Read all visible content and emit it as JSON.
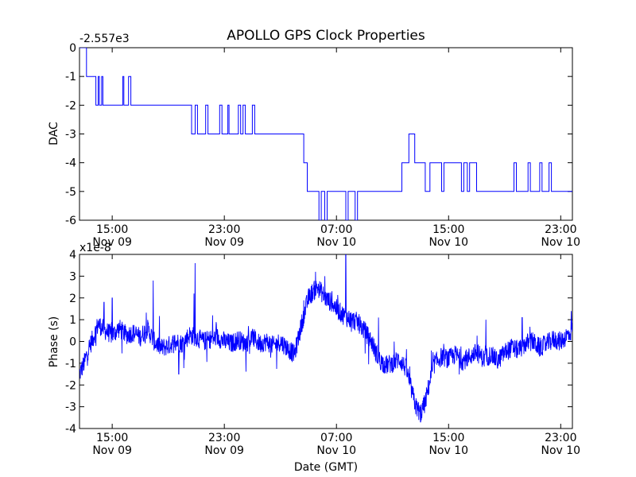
{
  "title": "APOLLO GPS Clock Properties",
  "xlabel": "Date (GMT)",
  "x_ticks": [
    {
      "t": "2010-11-09T15:00",
      "time": "15:00",
      "date": "Nov 09"
    },
    {
      "t": "2010-11-09T23:00",
      "time": "23:00",
      "date": "Nov 09"
    },
    {
      "t": "2010-11-10T07:00",
      "time": "07:00",
      "date": "Nov 10"
    },
    {
      "t": "2010-11-10T15:00",
      "time": "15:00",
      "date": "Nov 10"
    },
    {
      "t": "2010-11-10T23:00",
      "time": "23:00",
      "date": "Nov 10"
    }
  ],
  "line_color": "#0000ff",
  "chart_data": [
    {
      "type": "line",
      "ylabel": "DAC",
      "offset_label": "-2.557e3",
      "xlim": [
        "2010-11-09T12:40",
        "2010-11-10T23:50"
      ],
      "ylim": [
        -6,
        0
      ],
      "y_ticks": [
        "0",
        "-1",
        "-2",
        "-3",
        "-4",
        "-5",
        "-6"
      ],
      "grid": false,
      "series": [
        {
          "points": [
            [
              "2010-11-09T12:40",
              0
            ],
            [
              "2010-11-09T13:10",
              0
            ],
            [
              "2010-11-09T13:10",
              -1
            ],
            [
              "2010-11-09T13:50",
              -1
            ],
            [
              "2010-11-09T13:50",
              -2
            ],
            [
              "2010-11-09T14:00",
              -2
            ],
            [
              "2010-11-09T14:00",
              -1
            ],
            [
              "2010-11-09T14:05",
              -1
            ],
            [
              "2010-11-09T14:05",
              -2
            ],
            [
              "2010-11-09T14:15",
              -2
            ],
            [
              "2010-11-09T14:15",
              -1
            ],
            [
              "2010-11-09T14:20",
              -1
            ],
            [
              "2010-11-09T14:20",
              -2
            ],
            [
              "2010-11-09T15:45",
              -2
            ],
            [
              "2010-11-09T15:45",
              -1
            ],
            [
              "2010-11-09T15:50",
              -1
            ],
            [
              "2010-11-09T15:50",
              -2
            ],
            [
              "2010-11-09T16:10",
              -2
            ],
            [
              "2010-11-09T16:10",
              -1
            ],
            [
              "2010-11-09T16:20",
              -1
            ],
            [
              "2010-11-09T16:20",
              -2
            ],
            [
              "2010-11-09T20:40",
              -2
            ],
            [
              "2010-11-09T20:40",
              -3
            ],
            [
              "2010-11-09T20:55",
              -3
            ],
            [
              "2010-11-09T20:55",
              -2
            ],
            [
              "2010-11-09T21:05",
              -2
            ],
            [
              "2010-11-09T21:05",
              -3
            ],
            [
              "2010-11-09T21:40",
              -3
            ],
            [
              "2010-11-09T21:40",
              -2
            ],
            [
              "2010-11-09T21:50",
              -2
            ],
            [
              "2010-11-09T21:50",
              -3
            ],
            [
              "2010-11-09T22:40",
              -3
            ],
            [
              "2010-11-09T22:40",
              -2
            ],
            [
              "2010-11-09T22:50",
              -2
            ],
            [
              "2010-11-09T22:50",
              -3
            ],
            [
              "2010-11-09T23:15",
              -3
            ],
            [
              "2010-11-09T23:15",
              -2
            ],
            [
              "2010-11-09T23:20",
              -2
            ],
            [
              "2010-11-09T23:20",
              -3
            ],
            [
              "2010-11-10T00:00",
              -3
            ],
            [
              "2010-11-10T00:00",
              -2
            ],
            [
              "2010-11-10T00:10",
              -2
            ],
            [
              "2010-11-10T00:10",
              -3
            ],
            [
              "2010-11-10T00:20",
              -3
            ],
            [
              "2010-11-10T00:20",
              -2
            ],
            [
              "2010-11-10T00:30",
              -2
            ],
            [
              "2010-11-10T00:30",
              -3
            ],
            [
              "2010-11-10T01:00",
              -3
            ],
            [
              "2010-11-10T01:00",
              -2
            ],
            [
              "2010-11-10T01:10",
              -2
            ],
            [
              "2010-11-10T01:10",
              -3
            ],
            [
              "2010-11-10T04:40",
              -3
            ],
            [
              "2010-11-10T04:40",
              -4
            ],
            [
              "2010-11-10T04:55",
              -4
            ],
            [
              "2010-11-10T04:55",
              -5
            ],
            [
              "2010-11-10T05:45",
              -5
            ],
            [
              "2010-11-10T05:45",
              -6
            ],
            [
              "2010-11-10T05:55",
              -6
            ],
            [
              "2010-11-10T05:55",
              -5
            ],
            [
              "2010-11-10T06:10",
              -5
            ],
            [
              "2010-11-10T06:10",
              -6
            ],
            [
              "2010-11-10T06:20",
              -6
            ],
            [
              "2010-11-10T06:20",
              -5
            ],
            [
              "2010-11-10T07:40",
              -5
            ],
            [
              "2010-11-10T07:40",
              -6
            ],
            [
              "2010-11-10T07:50",
              -6
            ],
            [
              "2010-11-10T07:50",
              -5
            ],
            [
              "2010-11-10T08:20",
              -5
            ],
            [
              "2010-11-10T08:20",
              -6
            ],
            [
              "2010-11-10T08:30",
              -6
            ],
            [
              "2010-11-10T08:30",
              -5
            ],
            [
              "2010-11-10T11:40",
              -5
            ],
            [
              "2010-11-10T11:40",
              -4
            ],
            [
              "2010-11-10T12:10",
              -4
            ],
            [
              "2010-11-10T12:10",
              -3
            ],
            [
              "2010-11-10T12:35",
              -3
            ],
            [
              "2010-11-10T12:35",
              -4
            ],
            [
              "2010-11-10T13:20",
              -4
            ],
            [
              "2010-11-10T13:20",
              -5
            ],
            [
              "2010-11-10T13:40",
              -5
            ],
            [
              "2010-11-10T13:40",
              -4
            ],
            [
              "2010-11-10T14:30",
              -4
            ],
            [
              "2010-11-10T14:30",
              -5
            ],
            [
              "2010-11-10T14:40",
              -5
            ],
            [
              "2010-11-10T14:40",
              -4
            ],
            [
              "2010-11-10T15:55",
              -4
            ],
            [
              "2010-11-10T15:55",
              -5
            ],
            [
              "2010-11-10T16:05",
              -5
            ],
            [
              "2010-11-10T16:05",
              -4
            ],
            [
              "2010-11-10T16:20",
              -4
            ],
            [
              "2010-11-10T16:20",
              -5
            ],
            [
              "2010-11-10T16:30",
              -5
            ],
            [
              "2010-11-10T16:30",
              -4
            ],
            [
              "2010-11-10T17:00",
              -4
            ],
            [
              "2010-11-10T17:00",
              -5
            ],
            [
              "2010-11-10T19:40",
              -5
            ],
            [
              "2010-11-10T19:40",
              -4
            ],
            [
              "2010-11-10T19:50",
              -4
            ],
            [
              "2010-11-10T19:50",
              -5
            ],
            [
              "2010-11-10T20:40",
              -5
            ],
            [
              "2010-11-10T20:40",
              -4
            ],
            [
              "2010-11-10T20:50",
              -4
            ],
            [
              "2010-11-10T20:50",
              -5
            ],
            [
              "2010-11-10T21:30",
              -5
            ],
            [
              "2010-11-10T21:30",
              -4
            ],
            [
              "2010-11-10T21:40",
              -4
            ],
            [
              "2010-11-10T21:40",
              -5
            ],
            [
              "2010-11-10T22:10",
              -5
            ],
            [
              "2010-11-10T22:10",
              -4
            ],
            [
              "2010-11-10T22:20",
              -4
            ],
            [
              "2010-11-10T22:20",
              -5
            ],
            [
              "2010-11-10T23:50",
              -5
            ]
          ]
        }
      ]
    },
    {
      "type": "line",
      "ylabel": "Phase (s)",
      "offset_label": "x1e-8",
      "xlim": [
        "2010-11-09T12:40",
        "2010-11-10T23:50"
      ],
      "ylim": [
        -4,
        4
      ],
      "y_ticks": [
        "4",
        "3",
        "2",
        "1",
        "0",
        "-1",
        "-2",
        "-3",
        "-4"
      ],
      "grid": false,
      "series": [
        {
          "points": [
            [
              "2010-11-09T12:40",
              -1.5
            ],
            [
              "2010-11-09T13:00",
              -1.0
            ],
            [
              "2010-11-09T13:20",
              -0.3
            ],
            [
              "2010-11-09T13:40",
              0.2
            ],
            [
              "2010-11-09T14:00",
              0.8
            ],
            [
              "2010-11-09T14:30",
              0.5
            ],
            [
              "2010-11-09T15:00",
              0.3
            ],
            [
              "2010-11-09T15:30",
              0.6
            ],
            [
              "2010-11-09T16:00",
              0.3
            ],
            [
              "2010-11-09T16:30",
              0.4
            ],
            [
              "2010-11-09T17:00",
              0.2
            ],
            [
              "2010-11-09T17:30",
              0.6
            ],
            [
              "2010-11-09T18:00",
              0.0
            ],
            [
              "2010-11-09T18:30",
              -0.3
            ],
            [
              "2010-11-09T19:00",
              -0.2
            ],
            [
              "2010-11-09T19:30",
              0.0
            ],
            [
              "2010-11-09T20:00",
              -0.1
            ],
            [
              "2010-11-09T20:30",
              0.3
            ],
            [
              "2010-11-09T21:00",
              0.2
            ],
            [
              "2010-11-09T21:30",
              0.0
            ],
            [
              "2010-11-09T22:00",
              0.1
            ],
            [
              "2010-11-09T22:30",
              0.2
            ],
            [
              "2010-11-09T23:00",
              0.0
            ],
            [
              "2010-11-09T23:30",
              -0.1
            ],
            [
              "2010-11-10T00:00",
              0.1
            ],
            [
              "2010-11-10T00:30",
              -0.1
            ],
            [
              "2010-11-10T01:00",
              0.2
            ],
            [
              "2010-11-10T01:30",
              -0.1
            ],
            [
              "2010-11-10T02:00",
              0.0
            ],
            [
              "2010-11-10T02:30",
              -0.2
            ],
            [
              "2010-11-10T03:00",
              0.0
            ],
            [
              "2010-11-10T03:30",
              -0.3
            ],
            [
              "2010-11-10T04:00",
              -0.6
            ],
            [
              "2010-11-10T04:20",
              0.3
            ],
            [
              "2010-11-10T04:40",
              1.2
            ],
            [
              "2010-11-10T05:00",
              2.0
            ],
            [
              "2010-11-10T05:20",
              2.3
            ],
            [
              "2010-11-10T05:40",
              2.5
            ],
            [
              "2010-11-10T06:00",
              2.2
            ],
            [
              "2010-11-10T06:20",
              1.9
            ],
            [
              "2010-11-10T06:40",
              1.8
            ],
            [
              "2010-11-10T07:00",
              1.5
            ],
            [
              "2010-11-10T07:30",
              1.2
            ],
            [
              "2010-11-10T08:00",
              1.0
            ],
            [
              "2010-11-10T08:30",
              0.9
            ],
            [
              "2010-11-10T09:00",
              0.5
            ],
            [
              "2010-11-10T09:30",
              0.0
            ],
            [
              "2010-11-10T10:00",
              -0.8
            ],
            [
              "2010-11-10T10:30",
              -1.1
            ],
            [
              "2010-11-10T11:00",
              -1.0
            ],
            [
              "2010-11-10T11:30",
              -0.8
            ],
            [
              "2010-11-10T12:00",
              -1.3
            ],
            [
              "2010-11-10T12:20",
              -2.2
            ],
            [
              "2010-11-10T12:40",
              -3.0
            ],
            [
              "2010-11-10T13:00",
              -3.3
            ],
            [
              "2010-11-10T13:20",
              -2.8
            ],
            [
              "2010-11-10T13:40",
              -1.8
            ],
            [
              "2010-11-10T14:00",
              -1.0
            ],
            [
              "2010-11-10T14:30",
              -0.7
            ],
            [
              "2010-11-10T15:00",
              -0.8
            ],
            [
              "2010-11-10T15:30",
              -0.6
            ],
            [
              "2010-11-10T16:00",
              -0.9
            ],
            [
              "2010-11-10T16:30",
              -0.7
            ],
            [
              "2010-11-10T17:00",
              -0.5
            ],
            [
              "2010-11-10T17:30",
              -0.8
            ],
            [
              "2010-11-10T18:00",
              -0.6
            ],
            [
              "2010-11-10T18:30",
              -0.9
            ],
            [
              "2010-11-10T19:00",
              -0.5
            ],
            [
              "2010-11-10T19:30",
              -0.3
            ],
            [
              "2010-11-10T20:00",
              -0.4
            ],
            [
              "2010-11-10T20:30",
              -0.1
            ],
            [
              "2010-11-10T21:00",
              0.0
            ],
            [
              "2010-11-10T21:30",
              -0.3
            ],
            [
              "2010-11-10T22:00",
              -0.1
            ],
            [
              "2010-11-10T22:30",
              0.1
            ],
            [
              "2010-11-10T23:00",
              0.0
            ],
            [
              "2010-11-10T23:20",
              0.2
            ],
            [
              "2010-11-10T23:40",
              0.4
            ],
            [
              "2010-11-10T23:50",
              0.6
            ]
          ],
          "spikes": [
            [
              "2010-11-09T20:55",
              3.6
            ],
            [
              "2010-11-09T20:50",
              2.2
            ],
            [
              "2010-11-09T17:55",
              2.8
            ],
            [
              "2010-11-09T15:00",
              2.0
            ],
            [
              "2010-11-09T14:25",
              1.8
            ],
            [
              "2010-11-09T19:45",
              -1.5
            ],
            [
              "2010-11-09T22:10",
              1.2
            ],
            [
              "2010-11-10T05:30",
              3.2
            ],
            [
              "2010-11-10T07:40",
              4.0
            ],
            [
              "2010-11-10T06:10",
              3.0
            ],
            [
              "2010-11-10T10:00",
              1.1
            ],
            [
              "2010-11-10T13:00",
              -3.7
            ],
            [
              "2010-11-10T20:15",
              1.1
            ],
            [
              "2010-11-10T17:40",
              1.0
            ],
            [
              "2010-11-10T23:45",
              1.4
            ]
          ]
        }
      ]
    }
  ]
}
